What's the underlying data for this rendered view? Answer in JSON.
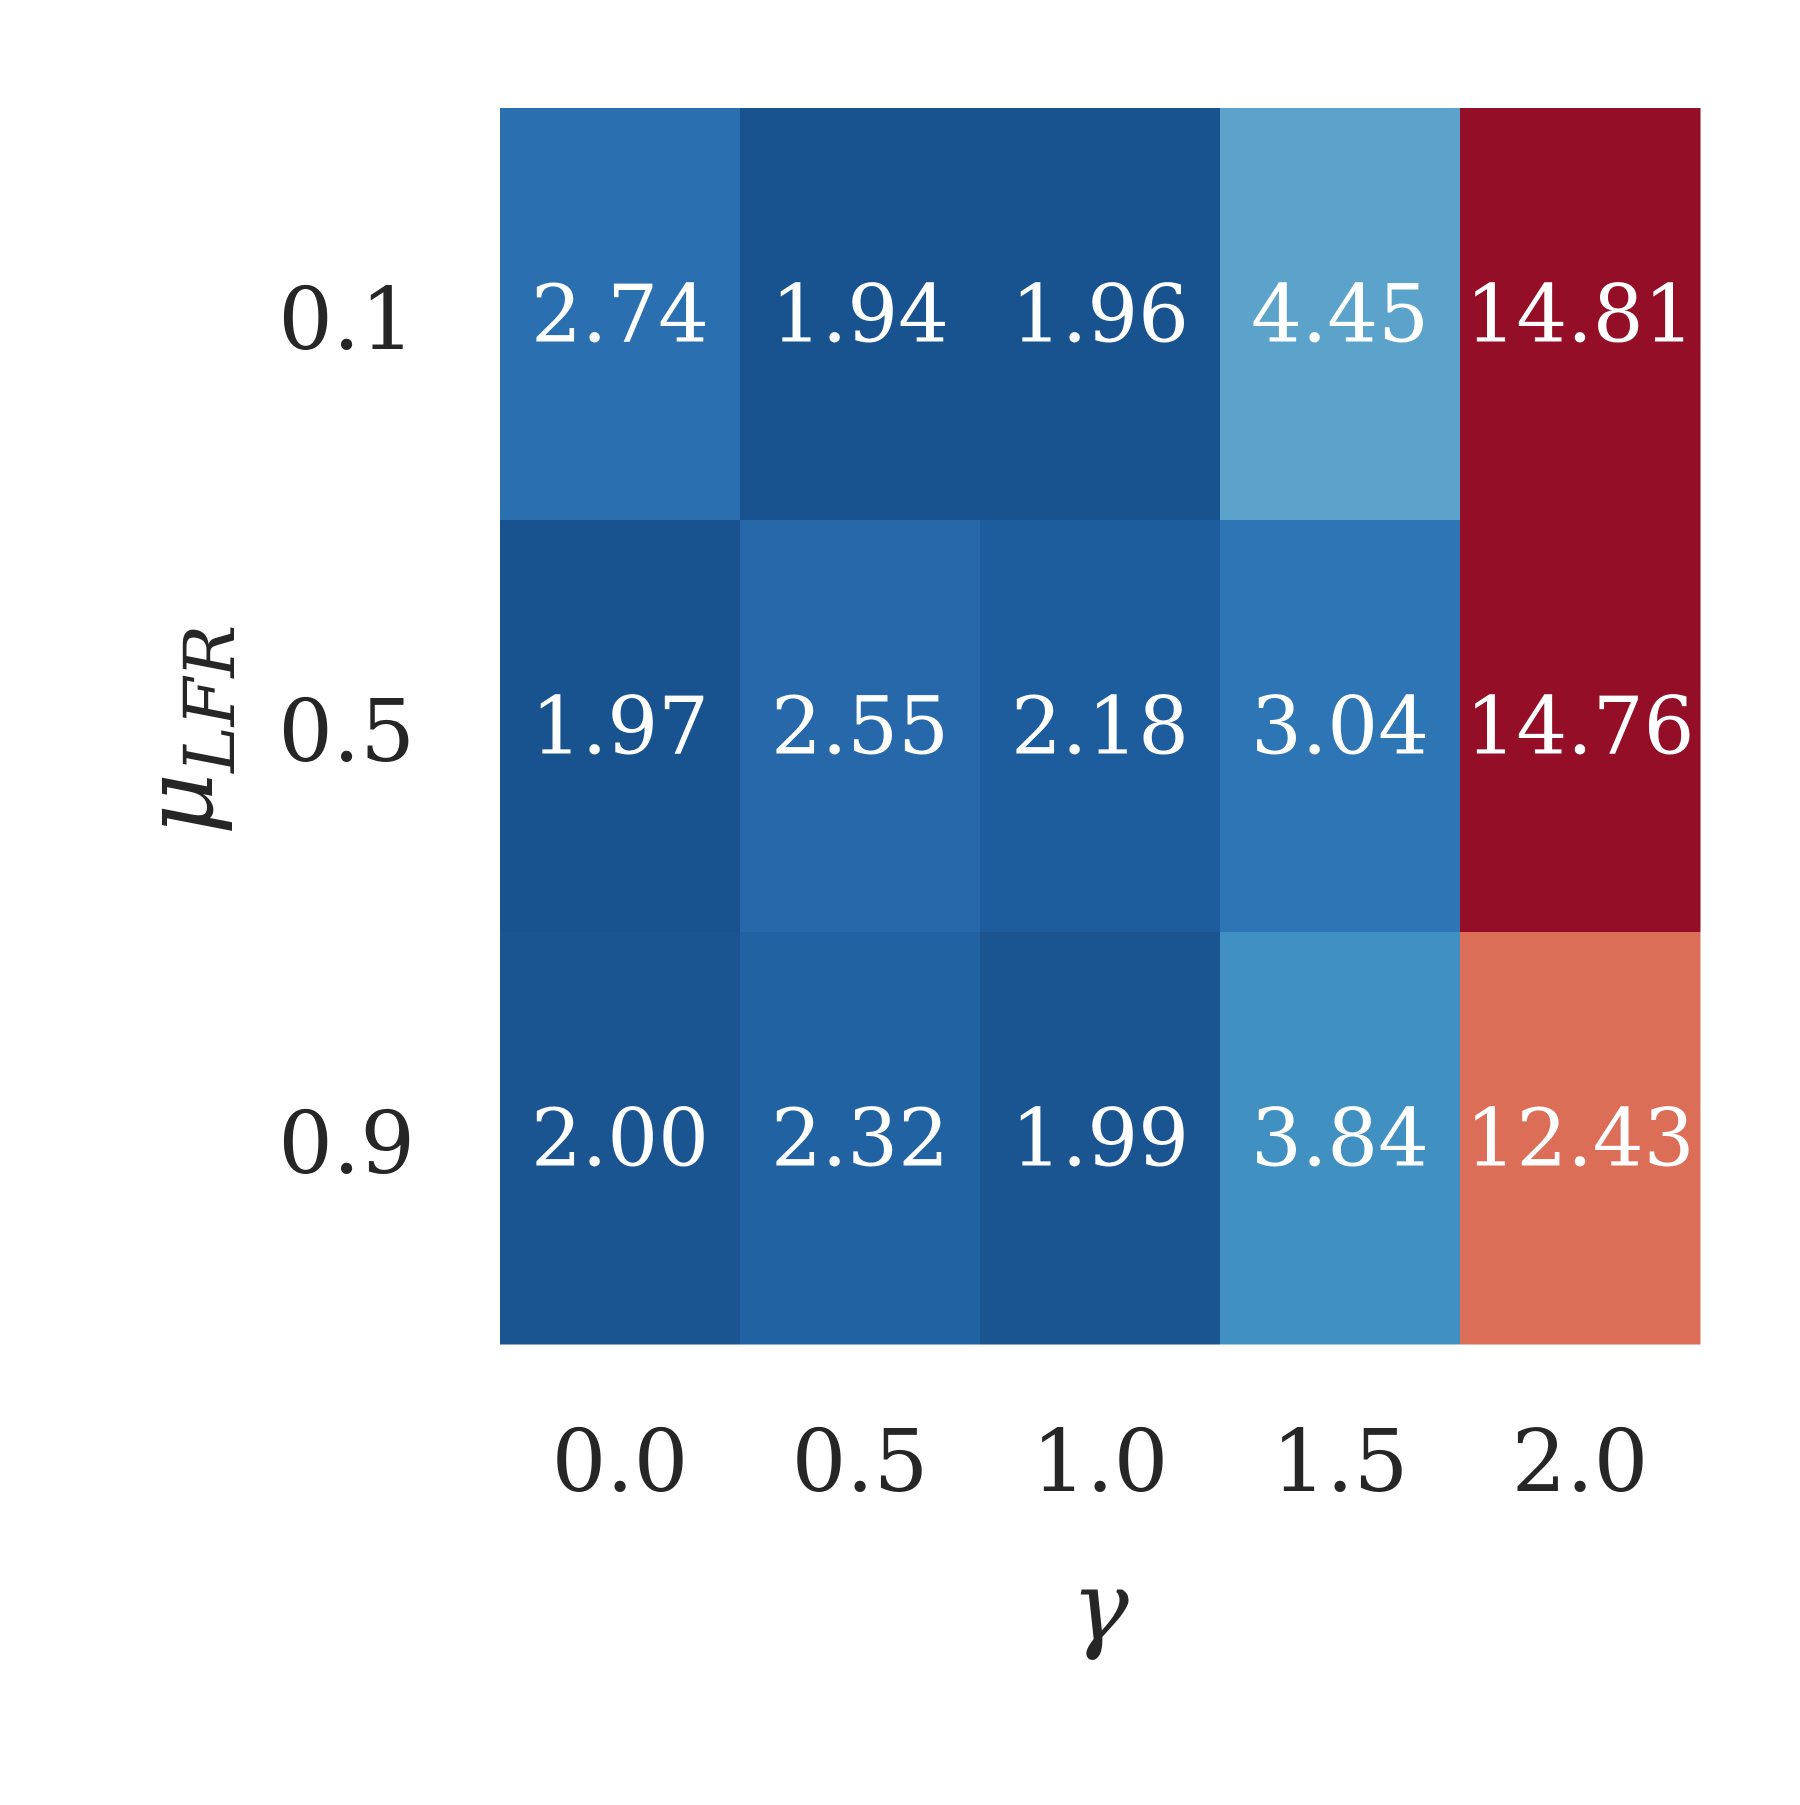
{
  "chart_data": {
    "type": "heatmap",
    "xlabel": "γ",
    "ylabel": "μ",
    "ylabel_subscript": "LFR",
    "x_categories": [
      "0.0",
      "0.5",
      "1.0",
      "1.5",
      "2.0"
    ],
    "y_categories": [
      "0.1",
      "0.5",
      "0.9"
    ],
    "values": [
      [
        2.74,
        1.94,
        1.96,
        4.45,
        14.81
      ],
      [
        1.97,
        2.55,
        2.18,
        3.04,
        14.76
      ],
      [
        2.0,
        2.32,
        1.99,
        3.84,
        12.43
      ]
    ],
    "value_labels": [
      [
        "2.74",
        "1.94",
        "1.96",
        "4.45",
        "14.81"
      ],
      [
        "1.97",
        "2.55",
        "2.18",
        "3.04",
        "14.76"
      ],
      [
        "2.00",
        "2.32",
        "1.99",
        "3.84",
        "12.43"
      ]
    ],
    "colormap": "RdBu_r",
    "cell_colors": [
      [
        "#2a6fb0",
        "#18538f",
        "#18538f",
        "#5ba3cb",
        "#930e26"
      ],
      [
        "#18538f",
        "#2668aa",
        "#1e5d9d",
        "#2d75b4",
        "#930e26"
      ],
      [
        "#1a5592",
        "#2163a2",
        "#1a5592",
        "#4090c1",
        "#dc6e58"
      ]
    ],
    "label_color": "#ffffff",
    "colorbar": false,
    "grid": false
  }
}
